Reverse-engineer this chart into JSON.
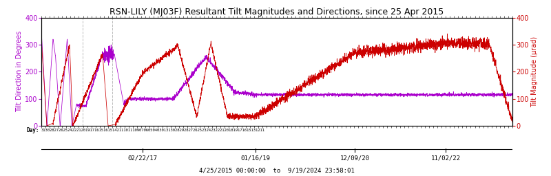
{
  "title": "RSN-LILY (MJ03F) Resultant Tilt Magnitudes and Directions, since 25 Apr 2015",
  "ylabel_left": "Tilt Direction in Degrees",
  "ylabel_right": "Tilt Magnitude (μrad)",
  "date_label": "4/25/2015 00:00:00  to  9/19/2024 23:58:01",
  "x_tick_labels": [
    "02/22/17",
    "01/16/19",
    "12/09/20",
    "11/02/22"
  ],
  "x_tick_positions": [
    0.215,
    0.455,
    0.665,
    0.858
  ],
  "ylim": [
    0,
    400
  ],
  "bg_color": "#ffffff",
  "direction_color": "#aa00cc",
  "magnitude_color": "#cc0000",
  "dashed_line_color": "#aaaaaa",
  "font_color": "#000000",
  "title_fontsize": 9,
  "axis_label_fontsize": 7,
  "tick_fontsize": 7,
  "day_str": "3130282726252422212019171615161514211101110907060504030131302829282726252324232221201819171615131211"
}
